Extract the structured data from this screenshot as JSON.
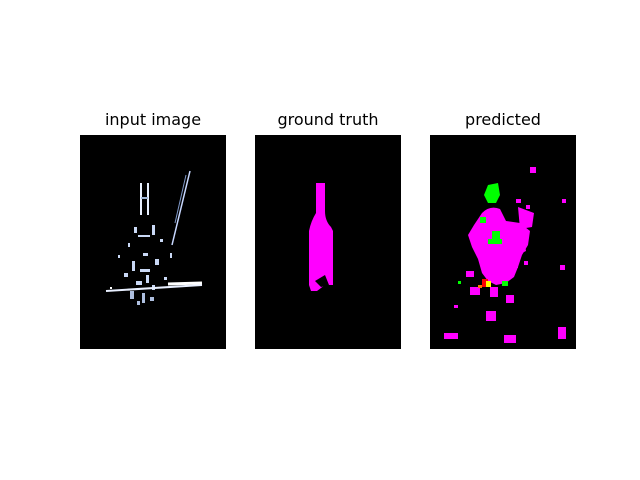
{
  "panels": [
    {
      "title": "input image"
    },
    {
      "title": "ground truth"
    },
    {
      "title": "predicted"
    }
  ],
  "colors": {
    "background": "#000000",
    "foreground_class": "#ff00ff",
    "secondary_class": "#00ff00",
    "tertiary_class": "#ff0000",
    "quaternary_class": "#ffff00",
    "input_highlight": "#dfeaff"
  }
}
